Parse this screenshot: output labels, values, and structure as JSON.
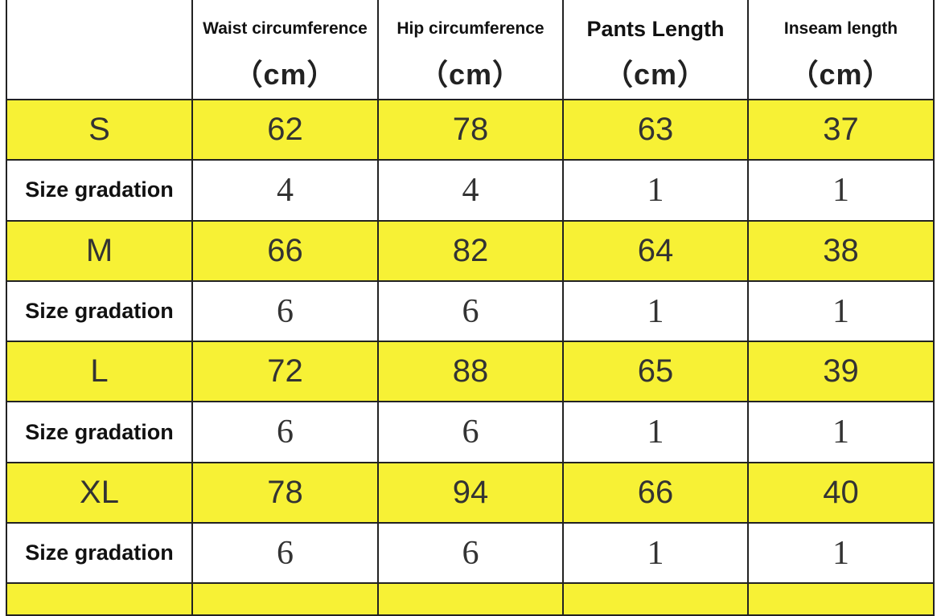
{
  "headers": [
    {
      "name": "",
      "unit": ""
    },
    {
      "name": "Waist circumference",
      "unit": "（cm）"
    },
    {
      "name": "Hip circumference",
      "unit": "（cm）"
    },
    {
      "name": "Pants Length",
      "unit": "（cm）"
    },
    {
      "name": "Inseam length",
      "unit": "（cm）"
    }
  ],
  "rows": [
    {
      "label": "S",
      "values": [
        "62",
        "78",
        "63",
        "37"
      ]
    },
    {
      "label": "Size gradation",
      "values": [
        "4",
        "4",
        "1",
        "1"
      ]
    },
    {
      "label": "M",
      "values": [
        "66",
        "82",
        "64",
        "38"
      ]
    },
    {
      "label": "Size gradation",
      "values": [
        "6",
        "6",
        "1",
        "1"
      ]
    },
    {
      "label": "L",
      "values": [
        "72",
        "88",
        "65",
        "39"
      ]
    },
    {
      "label": "Size gradation",
      "values": [
        "6",
        "6",
        "1",
        "1"
      ]
    },
    {
      "label": "XL",
      "values": [
        "78",
        "94",
        "66",
        "40"
      ]
    },
    {
      "label": "Size gradation",
      "values": [
        "6",
        "6",
        "1",
        "1"
      ]
    }
  ],
  "colors": {
    "size_row": "#f7f135",
    "gradation_row": "#ffffff",
    "border": "#222222"
  }
}
